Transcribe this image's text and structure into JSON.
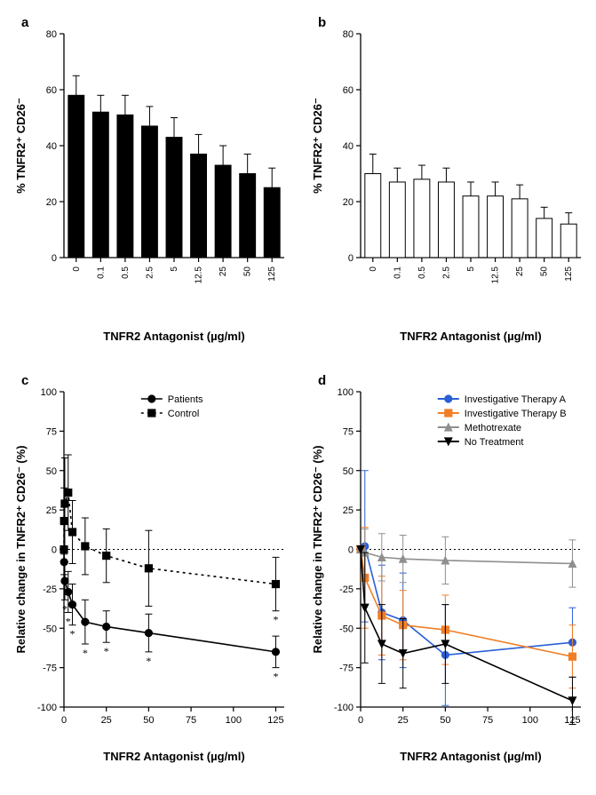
{
  "categories": [
    "0",
    "0.1",
    "0.5",
    "2.5",
    "5",
    "12.5",
    "25",
    "50",
    "125"
  ],
  "x_axis_label": "TNFR2 Antagonist (µg/ml)",
  "panel_a": {
    "type": "bar",
    "title": "a",
    "ylabel": "% TNFR2⁺ CD26⁻",
    "ylim": [
      0,
      80
    ],
    "ytick_step": 20,
    "bar_fill": "#000000",
    "bar_stroke": "#000000",
    "bar_width": 0.65,
    "background_color": "#ffffff",
    "values": [
      58,
      52,
      51,
      47,
      43,
      37,
      33,
      30,
      25
    ],
    "errors": [
      7,
      6,
      7,
      7,
      7,
      7,
      7,
      7,
      7
    ]
  },
  "panel_b": {
    "type": "bar",
    "title": "b",
    "ylabel": "% TNFR2⁺ CD26⁻",
    "ylim": [
      0,
      80
    ],
    "ytick_step": 20,
    "bar_fill": "#ffffff",
    "bar_stroke": "#000000",
    "bar_width": 0.65,
    "background_color": "#ffffff",
    "values": [
      30,
      27,
      28,
      27,
      22,
      22,
      21,
      14,
      12
    ],
    "errors": [
      7,
      5,
      5,
      5,
      5,
      5,
      5,
      4,
      4
    ]
  },
  "panel_c": {
    "type": "line",
    "title": "c",
    "ylabel": "Relative change in TNFR2⁺ CD26⁻ (%)",
    "ylim": [
      -100,
      100
    ],
    "ytick_step": 25,
    "xlim": [
      0,
      130
    ],
    "xticks": [
      0,
      25,
      50,
      75,
      100,
      125
    ],
    "x_values": [
      0,
      0.1,
      0.5,
      2.5,
      5,
      12.5,
      25,
      50,
      125
    ],
    "zero_line": 0,
    "legend": [
      {
        "label": "Patients",
        "marker": "circle",
        "fill": "#000000",
        "stroke": "#000000",
        "dash": false
      },
      {
        "label": "Control",
        "marker": "square",
        "fill": "#000000",
        "stroke": "#000000",
        "dash": true
      }
    ],
    "series": [
      {
        "name": "Patients",
        "color": "#000000",
        "dash": false,
        "marker": "circle",
        "marker_fill": "#000000",
        "y": [
          0,
          -8,
          -20,
          -27,
          -35,
          -46,
          -49,
          -53,
          -65
        ],
        "err": [
          0,
          8,
          12,
          13,
          13,
          14,
          10,
          12,
          10
        ],
        "stars": [
          false,
          false,
          true,
          true,
          true,
          true,
          true,
          true,
          true
        ]
      },
      {
        "name": "Control",
        "color": "#000000",
        "dash": true,
        "marker": "square",
        "marker_fill": "#000000",
        "y": [
          0,
          18,
          29,
          36,
          11,
          2,
          -4,
          -12,
          -22
        ],
        "err": [
          0,
          21,
          29,
          24,
          20,
          18,
          17,
          24,
          17
        ],
        "stars": [
          false,
          false,
          false,
          false,
          false,
          false,
          false,
          false,
          true
        ]
      }
    ]
  },
  "panel_d": {
    "type": "line",
    "title": "d",
    "ylabel": "Relative change in TNFR2⁺ CD26⁻ (%)",
    "ylim": [
      -100,
      100
    ],
    "ytick_step": 25,
    "xlim": [
      0,
      130
    ],
    "xticks": [
      0,
      25,
      50,
      75,
      100,
      125
    ],
    "x_values": [
      0,
      2.5,
      12.5,
      25,
      50,
      125
    ],
    "zero_line": 0,
    "legend": [
      {
        "label": "Investigative Therapy A",
        "color": "#2a5fd6",
        "marker": "circle"
      },
      {
        "label": "Investigative Therapy B",
        "color": "#f07f27",
        "marker": "square"
      },
      {
        "label": "Methotrexate",
        "color": "#8f8f8f",
        "marker": "triangle"
      },
      {
        "label": "No Treatment",
        "color": "#000000",
        "marker": "invtriangle"
      }
    ],
    "series": [
      {
        "name": "Investigative Therapy A",
        "color": "#2a5fd6",
        "marker": "circle",
        "line_width": 2,
        "y": [
          0,
          2,
          -40,
          -45,
          -67,
          -59
        ],
        "err": [
          0,
          48,
          30,
          30,
          32,
          22
        ]
      },
      {
        "name": "Investigative Therapy B",
        "color": "#f07f27",
        "marker": "square",
        "line_width": 2,
        "y": [
          0,
          -18,
          -42,
          -48,
          -51,
          -68
        ],
        "err": [
          0,
          32,
          25,
          22,
          22,
          20
        ]
      },
      {
        "name": "Methotrexate",
        "color": "#8f8f8f",
        "marker": "triangle",
        "line_width": 1.6,
        "y": [
          0,
          -2,
          -5,
          -6,
          -7,
          -9
        ],
        "err": [
          0,
          15,
          15,
          15,
          15,
          15
        ]
      },
      {
        "name": "No Treatment",
        "color": "#000000",
        "marker": "invtriangle",
        "line_width": 1.6,
        "y": [
          0,
          -37,
          -60,
          -66,
          -60,
          -96
        ],
        "err": [
          0,
          35,
          25,
          22,
          25,
          15
        ]
      }
    ]
  }
}
